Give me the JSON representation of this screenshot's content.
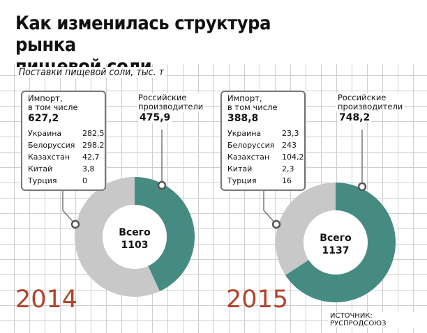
{
  "header": {
    "title_line1": "Как изменилась структура рынка",
    "title_line2": "пищевой соли",
    "subtitle": "Поставки пищевой соли, тыс. т"
  },
  "source": "ИСТОЧНИК: РУСПРОДСОЮЗ",
  "colors": {
    "import": "#c8c8c8",
    "domestic": "#468b82",
    "year": "#b2432b"
  },
  "chart_data": [
    {
      "type": "pie",
      "year": "2014",
      "total_label": "Всего",
      "total": "1103",
      "slices": [
        {
          "name": "Российские производители",
          "value": 475.9
        },
        {
          "name": "Импорт, в том числе",
          "value": 627.2
        }
      ],
      "import": {
        "label": "Импорт,\nв том числе",
        "value": "627,2",
        "breakdown": [
          {
            "country": "Украина",
            "value": "282,5"
          },
          {
            "country": "Белоруссия",
            "value": "298,2"
          },
          {
            "country": "Казахстан",
            "value": "42,7"
          },
          {
            "country": "Китай",
            "value": "3,8"
          },
          {
            "country": "Турция",
            "value": "0"
          }
        ]
      },
      "domestic": {
        "label": "Российские\nпроизводители",
        "value": "475,9"
      }
    },
    {
      "type": "pie",
      "year": "2015",
      "total_label": "Всего",
      "total": "1137",
      "slices": [
        {
          "name": "Российские производители",
          "value": 748.2
        },
        {
          "name": "Импорт, в том числе",
          "value": 388.8
        }
      ],
      "import": {
        "label": "Импорт,\nв том числе",
        "value": "388,8",
        "breakdown": [
          {
            "country": "Украина",
            "value": "23,3"
          },
          {
            "country": "Белоруссия",
            "value": "243"
          },
          {
            "country": "Казахстан",
            "value": "104,2"
          },
          {
            "country": "Китай",
            "value": "2,3"
          },
          {
            "country": "Турция",
            "value": "16"
          }
        ]
      },
      "domestic": {
        "label": "Российские\nпроизводители",
        "value": "748,2"
      }
    }
  ]
}
